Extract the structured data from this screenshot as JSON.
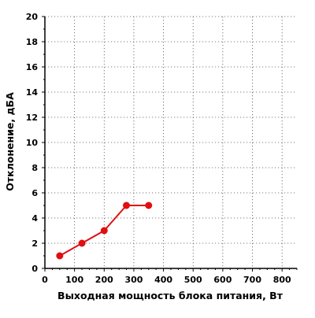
{
  "chart_data": {
    "type": "line",
    "title": "",
    "xlabel": "Выходная мощность блока питания, Вт",
    "ylabel": "Отклонение, дБА",
    "xlim": [
      0,
      850
    ],
    "ylim": [
      0,
      20
    ],
    "x_ticks": [
      0,
      100,
      200,
      300,
      400,
      500,
      600,
      700,
      800
    ],
    "y_ticks": [
      0,
      2,
      4,
      6,
      8,
      10,
      12,
      14,
      16,
      18,
      20
    ],
    "grid": true,
    "series": [
      {
        "color": "#e01010",
        "x": [
          50,
          125,
          200,
          275,
          350
        ],
        "y": [
          1,
          2,
          3,
          5,
          5
        ]
      }
    ]
  }
}
